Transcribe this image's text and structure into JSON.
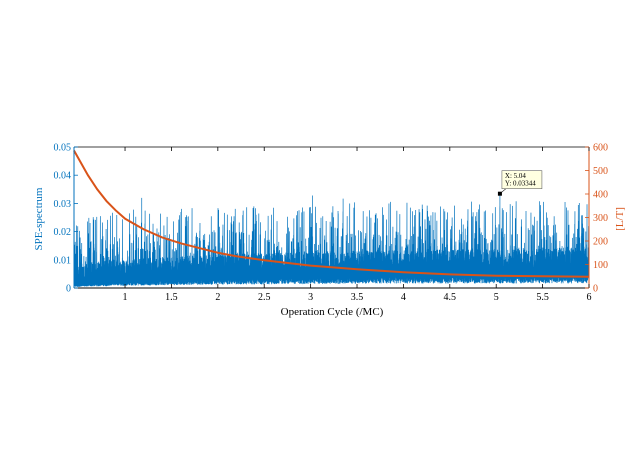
{
  "chart_data": {
    "type": "line",
    "title": "",
    "xlabel": "Operation Cycle (/MC)",
    "ylabel_left": "SPE-spectrum",
    "ylabel_right": "[L/T]",
    "xlim": [
      0.45,
      6
    ],
    "ylim_left": [
      0,
      0.05
    ],
    "ylim_right": [
      0,
      600
    ],
    "x_ticks": [
      "1",
      "1.5",
      "2",
      "2.5",
      "3",
      "3.5",
      "4",
      "4.5",
      "5",
      "5.5",
      "6"
    ],
    "y_left_ticks": [
      "0",
      "0.01",
      "0.02",
      "0.03",
      "0.04",
      "0.05"
    ],
    "y_right_ticks": [
      "0",
      "100",
      "200",
      "300",
      "400",
      "500",
      "600"
    ],
    "colors": {
      "spectrum": "#0072BD",
      "lt_curve": "#D95319"
    },
    "series": [
      {
        "axis": "left",
        "style": "dense-spectrum",
        "x_range": [
          0.45,
          6
        ],
        "envelope_x": [
          0.5,
          1.0,
          2.0,
          3.0,
          4.0,
          5.0,
          6.0
        ],
        "envelope_low": [
          0.001,
          0.002,
          0.003,
          0.0035,
          0.004,
          0.004,
          0.004
        ],
        "envelope_typical": [
          0.008,
          0.009,
          0.0105,
          0.0115,
          0.012,
          0.0125,
          0.013
        ],
        "envelope_peak": [
          0.026,
          0.028,
          0.029,
          0.03,
          0.031,
          0.031,
          0.031
        ],
        "max_peak": 0.034
      },
      {
        "axis": "right",
        "style": "smooth-curve",
        "x": [
          0.45,
          0.5,
          0.6,
          0.7,
          0.8,
          0.9,
          1.0,
          1.2,
          1.4,
          1.6,
          1.8,
          2.0,
          2.2,
          2.5,
          3.0,
          3.5,
          4.0,
          4.5,
          5.0,
          5.5,
          6.0
        ],
        "y": [
          585,
          550,
          480,
          420,
          370,
          330,
          295,
          250,
          215,
          190,
          170,
          150,
          135,
          118,
          95,
          80,
          67,
          58,
          52,
          50,
          48
        ]
      }
    ],
    "datatip": {
      "x": 5.04,
      "y": 0.03344,
      "x_label": "X: 5.04",
      "y_label": "Y: 0.03344"
    }
  }
}
